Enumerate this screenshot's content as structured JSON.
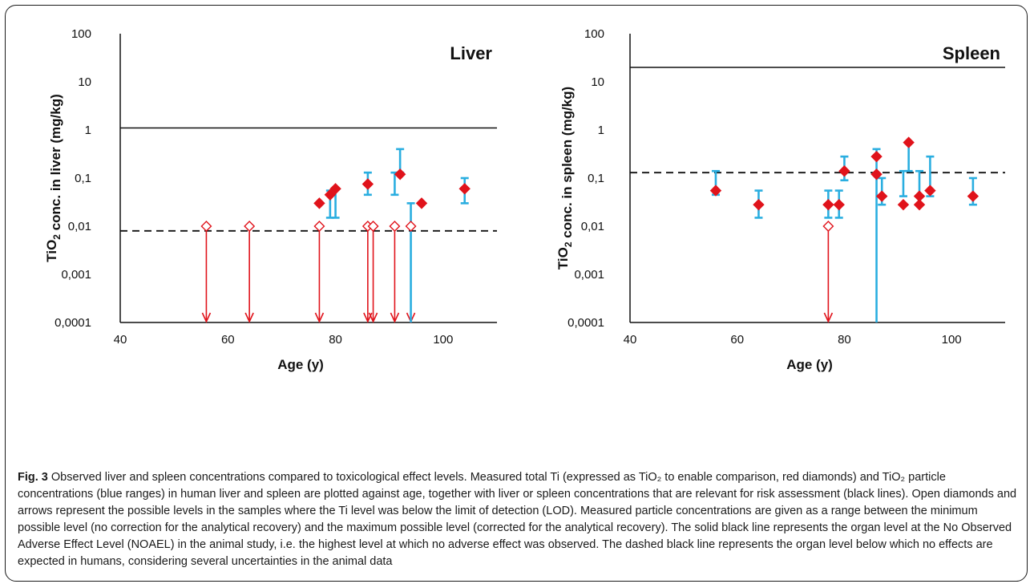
{
  "figure": {
    "caption_label": "Fig. 3",
    "caption_text": "Observed liver and spleen concentrations compared to toxicological effect levels. Measured total Ti (expressed as TiO₂ to enable comparison, red diamonds) and TiO₂ particle concentrations (blue ranges) in human liver and spleen are plotted against age, together with liver or spleen concentrations that are relevant for risk assessment (black lines). Open diamonds and arrows represent the possible levels in the samples where the Ti level was below the limit of detection (LOD). Measured particle concentrations are given as a range between the minimum possible level (no correction for the analytical recovery) and the maximum possible level (corrected for the analytical recovery). The solid black line represents the organ level at the No Observed Adverse Effect Level (NOAEL) in the animal study, i.e. the highest level at which no adverse effect was observed. The dashed black line represents the organ level below which no effects are expected in humans, considering several uncertainties in the animal data"
  },
  "chart_data": [
    {
      "type": "scatter",
      "title": "Liver",
      "xlabel": "Age (y)",
      "ylabel": "TiO₂ conc. in liver (mg/kg)",
      "xlim": [
        40,
        110
      ],
      "ylim": [
        0.0001,
        100
      ],
      "yscale": "log",
      "x_ticks": [
        "40",
        "60",
        "80",
        "100"
      ],
      "y_ticks": [
        "0,0001",
        "0,001",
        "0,01",
        "0,1",
        "1",
        "10",
        "100"
      ],
      "noael_level": 1.1,
      "safe_level": 0.008,
      "measured_total_ti": [
        {
          "x": 77,
          "y": 0.03
        },
        {
          "x": 79,
          "y": 0.045
        },
        {
          "x": 80,
          "y": 0.06
        },
        {
          "x": 86,
          "y": 0.075
        },
        {
          "x": 92,
          "y": 0.12
        },
        {
          "x": 96,
          "y": 0.03
        },
        {
          "x": 104,
          "y": 0.06
        }
      ],
      "below_lod": [
        {
          "x": 56,
          "y": 0.01
        },
        {
          "x": 64,
          "y": 0.01
        },
        {
          "x": 77,
          "y": 0.01
        },
        {
          "x": 86,
          "y": 0.01
        },
        {
          "x": 87,
          "y": 0.01
        },
        {
          "x": 91,
          "y": 0.01
        },
        {
          "x": 94,
          "y": 0.01
        }
      ],
      "particle_ranges": [
        {
          "x": 79,
          "low": 0.015,
          "high": 0.055
        },
        {
          "x": 80,
          "low": 0.015,
          "high": 0.06
        },
        {
          "x": 86,
          "low": 0.045,
          "high": 0.13
        },
        {
          "x": 91,
          "low": 0.045,
          "high": 0.13
        },
        {
          "x": 92,
          "low": 0.13,
          "high": 0.4
        },
        {
          "x": 94,
          "low": 0.0001,
          "high": 0.03
        },
        {
          "x": 104,
          "low": 0.03,
          "high": 0.1
        }
      ]
    },
    {
      "type": "scatter",
      "title": "Spleen",
      "xlabel": "Age (y)",
      "ylabel": "TiO₂ conc. in spleen (mg/kg)",
      "xlim": [
        40,
        110
      ],
      "ylim": [
        0.0001,
        100
      ],
      "yscale": "log",
      "x_ticks": [
        "40",
        "60",
        "80",
        "100"
      ],
      "y_ticks": [
        "0,0001",
        "0,001",
        "0,01",
        "0,1",
        "1",
        "10",
        "100"
      ],
      "noael_level": 20,
      "safe_level": 0.13,
      "measured_total_ti": [
        {
          "x": 56,
          "y": 0.055
        },
        {
          "x": 64,
          "y": 0.028
        },
        {
          "x": 77,
          "y": 0.028
        },
        {
          "x": 79,
          "y": 0.028
        },
        {
          "x": 80,
          "y": 0.14
        },
        {
          "x": 86,
          "y": 0.28
        },
        {
          "x": 86,
          "y": 0.12
        },
        {
          "x": 87,
          "y": 0.042
        },
        {
          "x": 91,
          "y": 0.028
        },
        {
          "x": 92,
          "y": 0.55
        },
        {
          "x": 94,
          "y": 0.028
        },
        {
          "x": 94,
          "y": 0.042
        },
        {
          "x": 96,
          "y": 0.055
        },
        {
          "x": 104,
          "y": 0.042
        }
      ],
      "below_lod": [
        {
          "x": 77,
          "y": 0.01
        }
      ],
      "particle_ranges": [
        {
          "x": 56,
          "low": 0.045,
          "high": 0.14
        },
        {
          "x": 64,
          "low": 0.015,
          "high": 0.055
        },
        {
          "x": 77,
          "low": 0.015,
          "high": 0.055
        },
        {
          "x": 79,
          "low": 0.015,
          "high": 0.055
        },
        {
          "x": 80,
          "low": 0.09,
          "high": 0.28
        },
        {
          "x": 86,
          "low": 0.0001,
          "high": 0.4
        },
        {
          "x": 87,
          "low": 0.028,
          "high": 0.1
        },
        {
          "x": 91,
          "low": 0.042,
          "high": 0.14
        },
        {
          "x": 92,
          "low": 0.14,
          "high": 0.55
        },
        {
          "x": 94,
          "low": 0.028,
          "high": 0.14
        },
        {
          "x": 96,
          "low": 0.042,
          "high": 0.28
        },
        {
          "x": 104,
          "low": 0.028,
          "high": 0.1
        }
      ]
    }
  ],
  "colors": {
    "measured": "#e0131b",
    "particle": "#2aaee0",
    "reference_line": "#111111",
    "axis": "#111111"
  }
}
